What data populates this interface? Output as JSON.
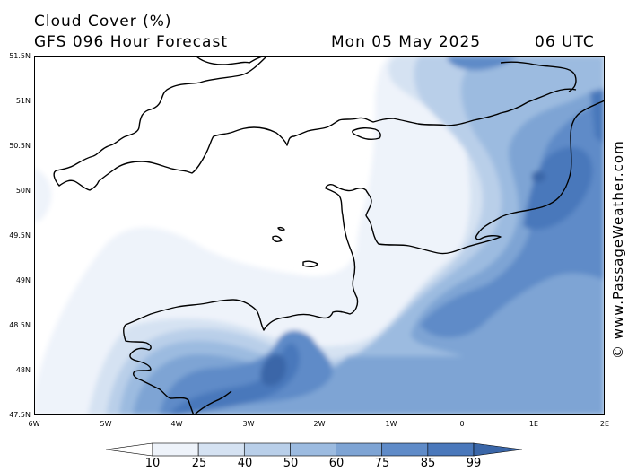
{
  "header": {
    "title": "Cloud Cover (%)",
    "subtitle": "GFS 096 Hour Forecast",
    "date": "Mon 05 May 2025",
    "time": "06 UTC"
  },
  "watermark": "© www.PassageWeather.com",
  "map": {
    "lat_ticks": [
      "51.5N",
      "51N",
      "50.5N",
      "50N",
      "49.5N",
      "49N",
      "48.5N",
      "48N",
      "47.5N"
    ],
    "lon_ticks": [
      "6W",
      "5W",
      "4W",
      "3W",
      "2W",
      "1W",
      "0",
      "1E",
      "2E"
    ],
    "extent": {
      "lon": [
        -6,
        2
      ],
      "lat": [
        47.5,
        51.5
      ]
    }
  },
  "colorbar": {
    "labels": [
      "10",
      "25",
      "40",
      "50",
      "60",
      "75",
      "85",
      "99"
    ],
    "colors": [
      "#ffffff",
      "#eef3fa",
      "#d5e2f2",
      "#b9cfe9",
      "#9cbbe0",
      "#7ea4d4",
      "#5f8bc8",
      "#4a78bb",
      "#3a66a8"
    ]
  }
}
